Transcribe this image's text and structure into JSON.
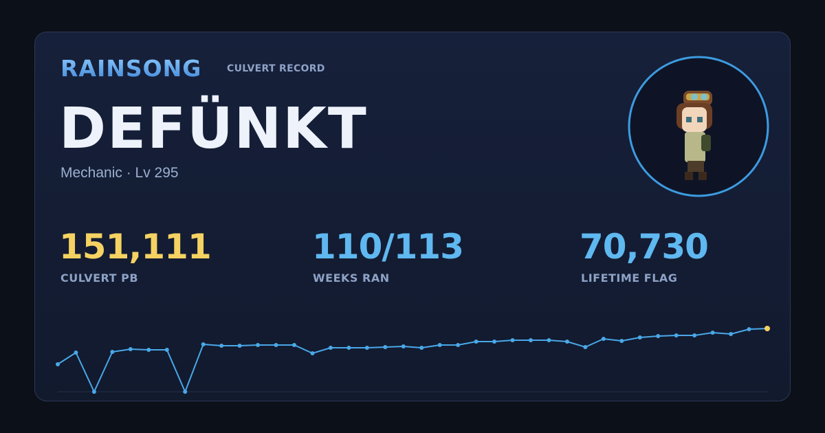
{
  "header": {
    "brand": "RAINSONG",
    "subtitle": "CULVERT RECORD"
  },
  "player": {
    "name": "DEFÜNKT",
    "meta": "Mechanic · Lv 295"
  },
  "stats": [
    {
      "value": "151,111",
      "label": "CULVERT PB"
    },
    {
      "value": "110/113",
      "label": "WEEKS RAN"
    },
    {
      "value": "70,730",
      "label": "LIFETIME FLAG"
    }
  ],
  "chart_data": {
    "type": "line",
    "color": "#4aa8e8",
    "highlight_color": "#f5d262",
    "ylim": [
      0,
      151111
    ],
    "values": [
      65700,
      93600,
      0,
      95300,
      101800,
      100200,
      100200,
      0,
      113300,
      110000,
      110000,
      111700,
      111700,
      111700,
      92000,
      105100,
      105100,
      105100,
      106800,
      108400,
      105100,
      111700,
      111700,
      119900,
      119900,
      123200,
      123200,
      123200,
      119900,
      106800,
      126500,
      121500,
      129800,
      133000,
      134700,
      134700,
      141300,
      138000,
      149500,
      151111
    ]
  }
}
